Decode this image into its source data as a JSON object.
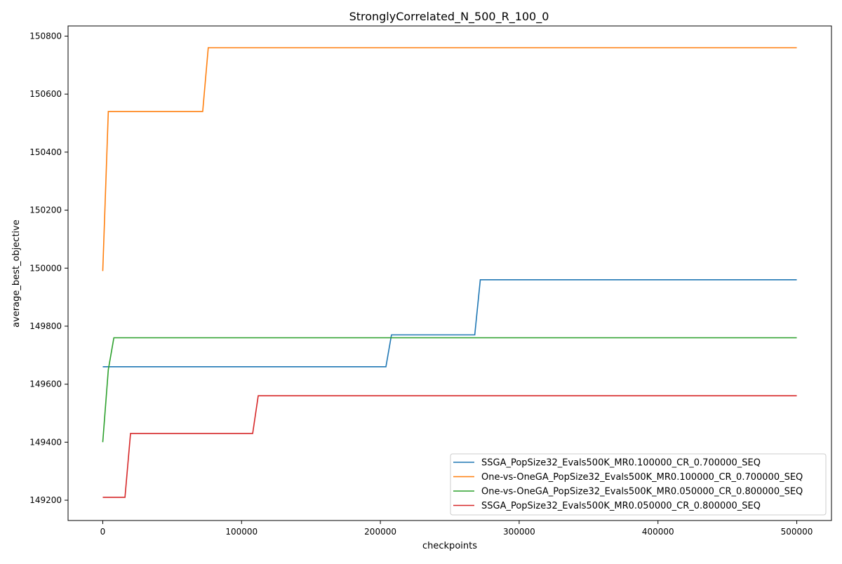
{
  "chart_data": {
    "type": "line",
    "title": "StronglyCorrelated_N_500_R_100_0",
    "xlabel": "checkpoints",
    "ylabel": "average_best_objective",
    "xlim": [
      -25000,
      525000
    ],
    "ylim": [
      149130,
      150835
    ],
    "x_ticks": [
      0,
      100000,
      200000,
      300000,
      400000,
      500000
    ],
    "y_ticks": [
      149200,
      149400,
      149600,
      149800,
      150000,
      150200,
      150400,
      150600,
      150800
    ],
    "grid": false,
    "legend_position": "lower-right",
    "series": [
      {
        "name": "SSGA_PopSize32_Evals500K_MR0.100000_CR_0.700000_SEQ",
        "color": "#1f77b4",
        "x": [
          0,
          204000,
          208000,
          268000,
          272000,
          500000
        ],
        "y": [
          149660,
          149660,
          149770,
          149770,
          149960,
          149960
        ]
      },
      {
        "name": "One-vs-OneGA_PopSize32_Evals500K_MR0.100000_CR_0.700000_SEQ",
        "color": "#ff7f0e",
        "x": [
          0,
          4000,
          72000,
          76000,
          500000
        ],
        "y": [
          149990,
          150540,
          150540,
          150760,
          150760
        ]
      },
      {
        "name": "One-vs-OneGA_PopSize32_Evals500K_MR0.050000_CR_0.800000_SEQ",
        "color": "#2ca02c",
        "x": [
          0,
          4000,
          8000,
          500000
        ],
        "y": [
          149400,
          149650,
          149760,
          149760
        ]
      },
      {
        "name": "SSGA_PopSize32_Evals500K_MR0.050000_CR_0.800000_SEQ",
        "color": "#d62728",
        "x": [
          0,
          16000,
          20000,
          108000,
          112000,
          500000
        ],
        "y": [
          149210,
          149210,
          149430,
          149430,
          149560,
          149560
        ]
      }
    ]
  }
}
